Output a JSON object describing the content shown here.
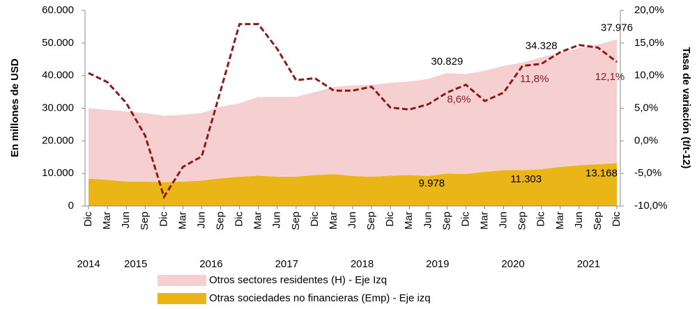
{
  "chart_data": {
    "type": "stacked_area_line",
    "y_label": "En millones de USD",
    "y2_label": "Tasa de variación (t/t-12)",
    "categories": [
      "Dic",
      "Mar",
      "Jun",
      "Sep",
      "Dic",
      "Mar",
      "Jun",
      "Sep",
      "Dic",
      "Mar",
      "Jun",
      "Sep",
      "Dic",
      "Mar",
      "Jun",
      "Sep",
      "Dic",
      "Mar",
      "Jun",
      "Sep",
      "Dic",
      "Mar",
      "Jun",
      "Sep",
      "Dic",
      "Mar",
      "Jun",
      "Sep",
      "Dic"
    ],
    "years": [
      "2014",
      "2015",
      "2016",
      "2017",
      "2018",
      "2019",
      "2020",
      "2021"
    ],
    "ylim": [
      0,
      60000
    ],
    "yticks": [
      0,
      {
        "value": 10000,
        "label": "10.000"
      },
      {
        "value": 20000,
        "label": "20.000"
      },
      {
        "value": 30000,
        "label": "30.000"
      },
      {
        "value": 40000,
        "label": "40.000"
      },
      {
        "value": 50000,
        "label": "50.000"
      },
      {
        "value": 60000,
        "label": "60.000"
      }
    ],
    "y2lim": [
      -10,
      20
    ],
    "y2ticks": [
      {
        "value": -10,
        "label": "-10,0%"
      },
      {
        "value": -5,
        "label": "-5,0%"
      },
      {
        "value": 0,
        "label": "0,0%"
      },
      {
        "value": 5,
        "label": "5,0%"
      },
      {
        "value": 10,
        "label": "10,0%"
      },
      {
        "value": 15,
        "label": "15,0%"
      },
      {
        "value": 20,
        "label": "20,0%"
      }
    ],
    "series": [
      {
        "name": "Otras sociedades no financieras (Emp) - Eje izq",
        "color": "#eab516",
        "values": [
          8400,
          8000,
          7500,
          7500,
          7300,
          7500,
          7800,
          8500,
          9000,
          9300,
          9000,
          9000,
          9500,
          9800,
          9200,
          9000,
          9300,
          9500,
          9200,
          9978,
          9800,
          10500,
          11000,
          11000,
          11303,
          12000,
          12500,
          12800,
          13168
        ],
        "value_labels": [
          null,
          null,
          null,
          null,
          null,
          null,
          null,
          null,
          null,
          null,
          null,
          null,
          null,
          null,
          null,
          null,
          null,
          null,
          null,
          "9.978",
          null,
          null,
          null,
          null,
          "11.303",
          null,
          null,
          null,
          "13.168"
        ]
      },
      {
        "name": "Otros sectores residentes (H) - Eje Izq",
        "color": "#f6d0d0",
        "values": [
          21600,
          21500,
          21500,
          21000,
          20400,
          20500,
          20700,
          22000,
          22500,
          24200,
          24500,
          24500,
          25500,
          26700,
          27800,
          28200,
          28500,
          28700,
          29800,
          30829,
          30700,
          31000,
          32000,
          33000,
          34328,
          35000,
          36000,
          36700,
          37976
        ],
        "value_labels": [
          null,
          null,
          null,
          null,
          null,
          null,
          null,
          null,
          null,
          null,
          null,
          null,
          null,
          null,
          null,
          null,
          null,
          null,
          null,
          "30.829",
          null,
          null,
          null,
          null,
          "34.328",
          null,
          null,
          null,
          "37.976"
        ]
      },
      {
        "axis": "y2",
        "color": "#8b1a1a",
        "dashed": true,
        "values": [
          10.4,
          9.0,
          5.8,
          0.8,
          -8.6,
          -4.0,
          -2.4,
          7.7,
          17.9,
          17.9,
          14.1,
          9.3,
          9.6,
          7.7,
          7.7,
          8.3,
          5.1,
          4.8,
          5.6,
          7.4,
          8.6,
          6.1,
          7.4,
          11.5,
          11.8,
          13.6,
          14.7,
          14.3,
          12.1
        ],
        "value_labels": [
          null,
          null,
          null,
          null,
          null,
          null,
          null,
          null,
          null,
          null,
          null,
          null,
          null,
          null,
          null,
          null,
          null,
          null,
          null,
          null,
          "8,6%",
          null,
          null,
          null,
          "11,8%",
          null,
          null,
          null,
          "12,1%"
        ]
      }
    ]
  }
}
